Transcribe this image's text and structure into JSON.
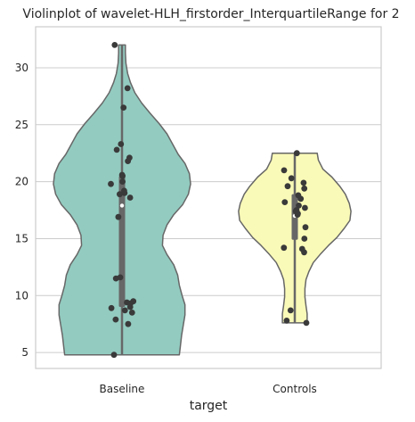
{
  "chart_data": {
    "type": "violin",
    "title": "Violinplot of wavelet-HLH_firstorder_InterquartileRange for 2",
    "xlabel": "target",
    "ylabel": "",
    "categories": [
      "Baseline",
      "Controls"
    ],
    "ylim": [
      3.6,
      33.6
    ],
    "yticks": [
      "5",
      "10",
      "15",
      "20",
      "25",
      "30"
    ],
    "grid": true,
    "legend": "none",
    "colors": {
      "Baseline": "#93cbc0",
      "Controls": "#fafab8",
      "points": "#3a3a3a",
      "outline": "#676767",
      "grid": "#cccccc"
    },
    "series": [
      {
        "category": "Baseline",
        "min": 4.8,
        "q1": 9.0,
        "median": 17.9,
        "q3": 20.5,
        "max": 32.0,
        "points": [
          32.0,
          28.2,
          26.5,
          23.3,
          22.8,
          22.1,
          21.8,
          20.6,
          20.5,
          20.0,
          19.8,
          19.2,
          19.0,
          18.9,
          18.6,
          16.9,
          11.6,
          11.5,
          9.5,
          9.4,
          9.3,
          9.0,
          8.9,
          8.7,
          8.5,
          7.9,
          7.5,
          4.8
        ],
        "density": [
          [
            4.8,
            1.02
          ],
          [
            5.6,
            1.04
          ],
          [
            6.5,
            1.06
          ],
          [
            7.4,
            1.09
          ],
          [
            8.3,
            1.12
          ],
          [
            9.2,
            1.12
          ],
          [
            10.0,
            1.07
          ],
          [
            10.9,
            1.02
          ],
          [
            11.8,
            0.99
          ],
          [
            12.7,
            0.92
          ],
          [
            13.6,
            0.8
          ],
          [
            14.4,
            0.72
          ],
          [
            15.3,
            0.73
          ],
          [
            16.2,
            0.8
          ],
          [
            17.1,
            0.92
          ],
          [
            18.0,
            1.08
          ],
          [
            18.9,
            1.18
          ],
          [
            19.8,
            1.22
          ],
          [
            20.7,
            1.2
          ],
          [
            21.6,
            1.12
          ],
          [
            22.4,
            1.0
          ],
          [
            23.3,
            0.9
          ],
          [
            24.2,
            0.8
          ],
          [
            25.1,
            0.66
          ],
          [
            26.0,
            0.5
          ],
          [
            26.9,
            0.35
          ],
          [
            27.8,
            0.23
          ],
          [
            28.7,
            0.15
          ],
          [
            29.5,
            0.1
          ],
          [
            30.4,
            0.07
          ],
          [
            31.3,
            0.06
          ],
          [
            32.0,
            0.06
          ]
        ]
      },
      {
        "category": "Controls",
        "min": 7.6,
        "q1": 14.9,
        "median": 17.0,
        "q3": 18.9,
        "max": 22.5,
        "points": [
          22.5,
          21.0,
          20.3,
          19.9,
          19.6,
          19.4,
          18.8,
          18.5,
          18.2,
          17.9,
          17.7,
          17.5,
          17.4,
          17.2,
          17.1,
          16.0,
          15.0,
          14.2,
          14.1,
          13.8,
          8.7,
          7.8,
          7.6
        ],
        "density": [
          [
            7.6,
            0.22
          ],
          [
            8.4,
            0.22
          ],
          [
            9.1,
            0.2
          ],
          [
            9.9,
            0.18
          ],
          [
            10.6,
            0.18
          ],
          [
            11.4,
            0.2
          ],
          [
            12.1,
            0.25
          ],
          [
            12.9,
            0.33
          ],
          [
            13.6,
            0.45
          ],
          [
            14.4,
            0.6
          ],
          [
            15.1,
            0.75
          ],
          [
            15.9,
            0.88
          ],
          [
            16.6,
            0.98
          ],
          [
            17.4,
            1.0
          ],
          [
            18.1,
            0.97
          ],
          [
            18.9,
            0.9
          ],
          [
            19.6,
            0.8
          ],
          [
            20.4,
            0.66
          ],
          [
            21.1,
            0.5
          ],
          [
            21.9,
            0.42
          ],
          [
            22.5,
            0.4
          ]
        ]
      }
    ]
  }
}
